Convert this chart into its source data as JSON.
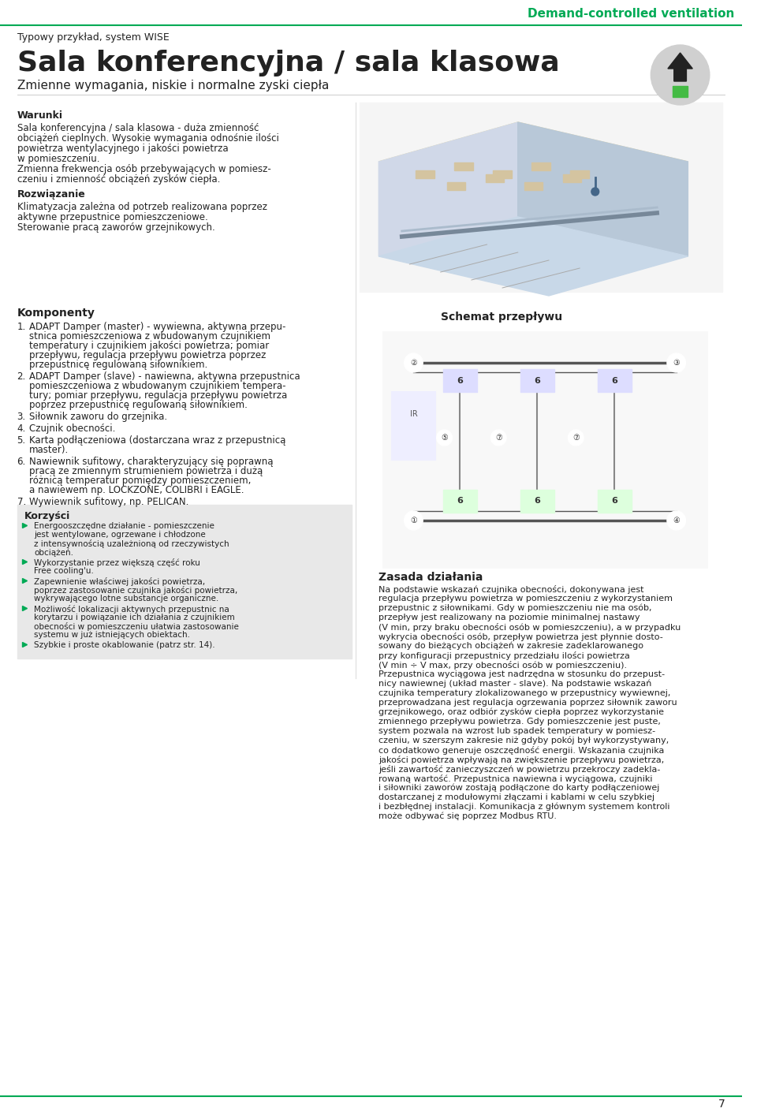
{
  "bg_color": "#ffffff",
  "header_bar_color": "#ffffff",
  "green_text": "Demand-controlled ventilation",
  "green_color": "#00aa55",
  "typowy": "Typowy przykład, system WISE",
  "title": "Sala konferencyjna / sala klasowa",
  "subtitle": "Zmienne wymagania, niskie i normalne zyski ciepła",
  "warunki_header": "Warunki",
  "warunki_text": "Sala konferencyjna / sala klasowa - duża zmienność\nobciążeń cieplnych. Wysokie wymagania odnośnie ilości\npowietrza wentylacyjnego i jakości powietrza\nw pomieszczeniu.\nZmienna frekwencja osób przebywających w pomiesz-\nczeniu i zmienność obciążeń zysków ciepła.",
  "rozwiazanie_header": "Rozwiązanie",
  "rozwiazanie_text": "Klimatyzacja zależna od potrzeb realizowana poprzez\naktywne przepustnice pomieszczeniowe.\nSterowanie pracą zaworów grzejnikowych.",
  "komponenty_header": "Komponenty",
  "schemat_header": "Schemat przepływu",
  "komponenty_items": [
    "ADAPT Damper (master) - wywiewna, aktywna przepu-\nstnica pomieszczeniowa z wbudowanym czujnikiem\ntemperatury i czujnikiem jakości powietrza; pomiar\nprzepływu, regulacja przepływu powietrza poprzez\nprzepustnicę regulowaną siłownikiem.",
    "ADAPT Damper (slave) - nawiewna, aktywna przepustnica\npomieszczeniowa z wbudowanym czujnikiem tempera-\ntury; pomiar przepływu, regulacja przepływu powietrza\npoprzez przepustnicę regulowaną siłownikiem.",
    "Siłownik zaworu do grzejnika.",
    "Czujnik obecności.",
    "Karta podłączeniowa (dostarczana wraz z przepustnicą\nmaster).",
    "Nawiewnik sufitowy, charakteryzujący się poprawną\npracą ze zmiennym strumieniem powietrza i dużą\nróżnicą temperatur pomiędzy pomieszczeniem,\na nawiewem np. LOCKZONE, COLIBRI i EAGLE.",
    "Wywiewnik sufitowy, np. PELICAN."
  ],
  "korzysci_header": "Korzyści",
  "korzysci_items": [
    "Energooszczędne działanie - pomieszczenie\njest wentylowane, ogrzewane i chłodzone\nz intensywnością uzależnioną od rzeczywistych\nobciążeń.",
    "Wykorzystanie przez większą część roku\nFree cooling'u.",
    "Zapewnienie właściwej jakości powietrza,\npoprzez zastosowanie czujnika jakości powietrza,\nwykrywającego lotne substancje organiczne.",
    "Możliwość lokalizacji aktywnych przepustnic na\nkorytarzu i powiązanie ich działania z czujnikiem\nobecności w pomieszczeniu ułatwia zastosowanie\nsystemu w już istniejących obiektach.",
    "Szybkie i proste okablowanie (patrz str. 14)."
  ],
  "zasada_header": "Zasada działania",
  "zasada_text": "Na podstawie wskazań czujnika obecności, dokonywana jest\nregulacja przepływu powietrza w pomieszczeniu z wykorzystaniem\nprzepustnic z siłownikami. Gdy w pomieszczeniu nie ma osób,\nprzepływ jest realizowany na poziomie minimalnej nastawy\n(V min, przy braku obecności osób w pomieszczeniu), a w przypadku\nwykrycia obecności osób, przepływ powietrza jest płynnie dosto-\nsowany do bieżących obciążeń w zakresie zadeklarowanego\nprzy konfiguracji przepustnicy przedziału ilości powietrza\n(V min ÷ V max, przy obecności osób w pomieszczeniu).\nPrzepustnica wyciągowa jest nadrzędna w stosunku do przepust-\nnicy nawiewnej (układ master - slave). Na podstawie wskazań\nczujnika temperatury zlokalizowanego w przepustnicy wywiewnej,\nprzeprowadzana jest regulacja ogrzewania poprzez siłownik zaworu\ngrzejnikowego, oraz odbiór zysków ciepła poprzez wykorzystanie\nzmiennego przepływu powietrza. Gdy pomieszczenie jest puste,\nsystem pozwala na wzrost lub spadek temperatury w pomiesz-\nczeniu, w szerszym zakresie niż gdyby pokój był wykorzystywany,\nco dodatkowo generuje oszczędność energii. Wskazania czujnika\njakości powietrza wpływają na zwiększenie przepływu powietrza,\njeśli zawartość zanieczyszczeń w powietrzu przekroczy zadekla-\nrowaną wartość. Przepustnica nawiewna i wyciągowa, czujniki\ni siłowniki zaworów zostają podłączone do karty podłączeniowej\ndostarczanej z modułowymi złączami i kablami w celu szybkiej\ni bezbłędnej instalacji. Komunikacja z głównym systemem kontroli\nmoże odbywać się poprzez Modbus RTU.",
  "page_number": "7",
  "top_line_color": "#00aa55",
  "korzysci_box_color": "#e8e8e8",
  "bullet_color": "#00aa55",
  "font_color": "#222222",
  "font_color_light": "#444444"
}
